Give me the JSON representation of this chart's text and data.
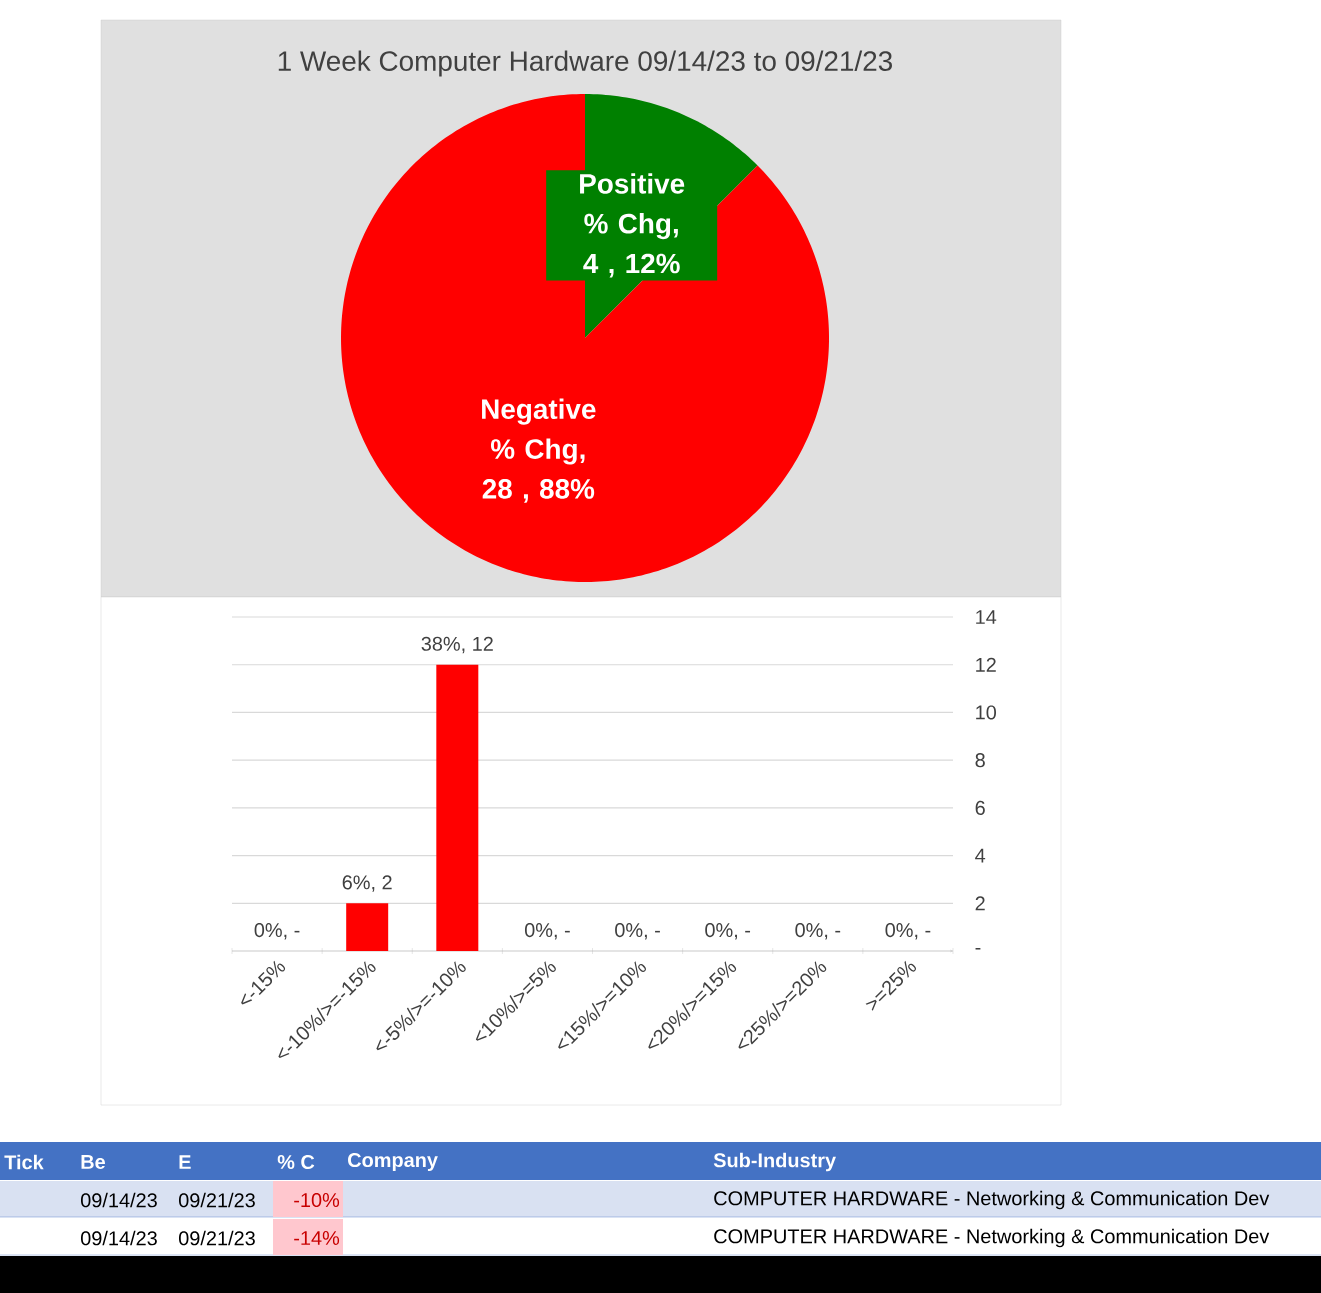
{
  "chart_data": [
    {
      "type": "pie",
      "title": "1 Week Computer Hardware 09/14/23 to 09/21/23",
      "categories": [
        "Positive % Chg",
        "Negative % Chg"
      ],
      "values": [
        4,
        28
      ],
      "colors": [
        "#008000",
        "#ff0000"
      ],
      "value_labels": [
        ",  4 , 12%",
        ",  28 , 88%"
      ]
    },
    {
      "type": "bar",
      "categories": [
        "<-15%",
        "<-10%/>=-15%",
        "<-5%/>=-10%",
        "<10%/>=5%",
        "<15%/>=10%",
        "<20%/>=15%",
        "<25%/>=20%",
        ">=25%"
      ],
      "values": [
        0,
        2,
        12,
        0,
        0,
        0,
        0,
        0
      ],
      "color": "#ff0000",
      "value_labels": [
        "0%,  -",
        "6%,  2",
        "38%,  12",
        "0%,  -",
        "0%,  -",
        "0%,  -",
        "0%,  -",
        "0%,  -"
      ],
      "ylim": [
        0,
        14
      ],
      "yticks": [
        {
          "value": 0,
          "label": "-"
        },
        2,
        4,
        6,
        8,
        10,
        12,
        14
      ],
      "grid": "y"
    },
    {
      "type": "other",
      "categories": [
        "Tick",
        "Be",
        "E",
        "% C",
        "Company",
        "Sub-Industry"
      ],
      "cell_labels": [
        [
          null,
          "09/14/23",
          "09/21/23",
          "-10%",
          null,
          "COMPUTER HARDWARE - Networking & Communication Dev"
        ],
        [
          null,
          "09/14/23",
          "09/21/23",
          "-14%",
          null,
          "COMPUTER HARDWARE - Networking & Communication Dev"
        ]
      ]
    }
  ]
}
